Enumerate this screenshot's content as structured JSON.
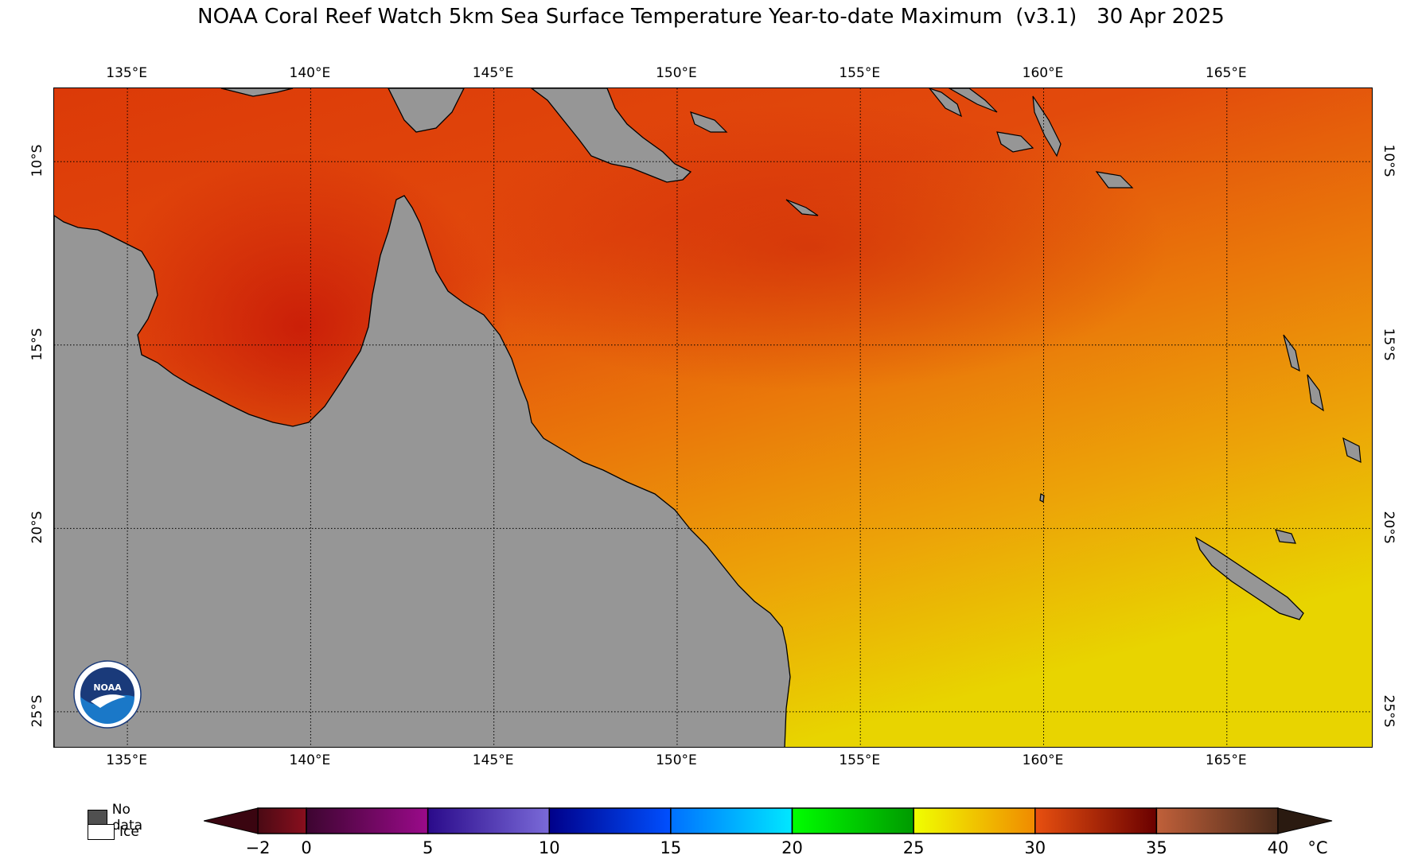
{
  "title": "NOAA Coral Reef Watch 5km Sea Surface Temperature Year-to-date Maximum  (v3.1)   30 Apr 2025",
  "map": {
    "lon_range": [
      133,
      169
    ],
    "lat_range": [
      -26,
      -8
    ],
    "lon_ticks": [
      "135°E",
      "140°E",
      "145°E",
      "150°E",
      "155°E",
      "160°E",
      "165°E"
    ],
    "lat_ticks": [
      "10°S",
      "15°S",
      "20°S",
      "25°S"
    ],
    "land_color": "#969696",
    "gridlines": "dotted"
  },
  "legend": {
    "no_data_label": "No data",
    "ice_label": "Ice",
    "no_data_color": "#505050",
    "ice_color": "#ffffff"
  },
  "colorbar": {
    "unit": "°C",
    "min": -2,
    "max": 40,
    "tick_labels": [
      "−2",
      "0",
      "5",
      "10",
      "15",
      "20",
      "25",
      "30",
      "35",
      "40"
    ],
    "tick_values": [
      -2,
      0,
      5,
      10,
      15,
      20,
      25,
      30,
      35,
      40
    ],
    "segments": [
      {
        "from": -2,
        "to": 0,
        "colors": [
          "#4a0a14",
          "#8a0f1e"
        ]
      },
      {
        "from": 0,
        "to": 5,
        "colors": [
          "#3d0530",
          "#9a0a8a"
        ]
      },
      {
        "from": 5,
        "to": 10,
        "colors": [
          "#2a0a8a",
          "#7a6ad8"
        ]
      },
      {
        "from": 10,
        "to": 15,
        "colors": [
          "#00008a",
          "#0050ff"
        ]
      },
      {
        "from": 15,
        "to": 20,
        "colors": [
          "#0070ff",
          "#00e8ff"
        ]
      },
      {
        "from": 20,
        "to": 25,
        "colors": [
          "#00ff00",
          "#009a00"
        ]
      },
      {
        "from": 25,
        "to": 30,
        "colors": [
          "#f0ff00",
          "#f08a00"
        ]
      },
      {
        "from": 30,
        "to": 35,
        "colors": [
          "#e85010",
          "#6a0000"
        ]
      },
      {
        "from": 35,
        "to": 40,
        "colors": [
          "#c0603a",
          "#4a2a1a"
        ]
      }
    ],
    "under_color": "#3a0510",
    "over_color": "#2a1a10"
  },
  "logo": {
    "text": "NOAA",
    "icon": "noaa-logo-icon"
  }
}
